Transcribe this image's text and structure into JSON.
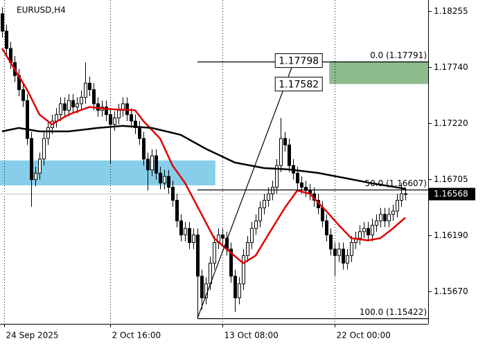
{
  "chart_data": {
    "type": "candlestick",
    "title": "EURUSD,H4",
    "ylim": [
      1.1537,
      1.18357
    ],
    "yticks": [
      1.18255,
      {
        "value": 1.1774,
        "label": "1.17740"
      },
      {
        "value": 1.1722,
        "label": "1.17220"
      },
      1.16705,
      {
        "value": 1.1619,
        "label": "1.16190"
      },
      {
        "value": 1.1567,
        "label": "1.15670"
      }
    ],
    "xlim": [
      -0.5,
      102.5
    ],
    "xticks": [
      {
        "value": 0.5,
        "label": "24 Sep 2025"
      },
      {
        "value": 26,
        "label": "2 Oct 16:00"
      },
      {
        "value": 53,
        "label": "13 Oct 08:00"
      },
      {
        "value": 80,
        "label": "22 Oct 00:00"
      }
    ],
    "grid": true,
    "bull_color": "#ffffff",
    "bear_color": "#000000",
    "candles": [
      [
        1.1823,
        1.1829,
        1.1801,
        1.1807
      ],
      [
        1.1807,
        1.1813,
        1.1785,
        1.1791
      ],
      [
        1.1791,
        1.1797,
        1.1772,
        1.1778
      ],
      [
        1.1778,
        1.1784,
        1.176,
        1.1766
      ],
      [
        1.1766,
        1.1772,
        1.1747,
        1.1753
      ],
      [
        1.1753,
        1.1759,
        1.1737,
        1.1743
      ],
      [
        1.1743,
        1.1749,
        1.1702,
        1.1708
      ],
      [
        1.1708,
        1.1714,
        1.1645,
        1.167
      ],
      [
        1.167,
        1.1682,
        1.1664,
        1.1676
      ],
      [
        1.1676,
        1.1695,
        1.167,
        1.1689
      ],
      [
        1.1689,
        1.1714,
        1.1683,
        1.1708
      ],
      [
        1.1708,
        1.1724,
        1.1702,
        1.1718
      ],
      [
        1.1718,
        1.173,
        1.1712,
        1.1724
      ],
      [
        1.1724,
        1.1736,
        1.1718,
        1.173
      ],
      [
        1.173,
        1.1746,
        1.1724,
        1.174
      ],
      [
        1.174,
        1.1746,
        1.1728,
        1.1734
      ],
      [
        1.1734,
        1.1749,
        1.1728,
        1.1743
      ],
      [
        1.1743,
        1.1749,
        1.1731,
        1.1737
      ],
      [
        1.1737,
        1.1746,
        1.1731,
        1.174
      ],
      [
        1.174,
        1.1752,
        1.1734,
        1.1746
      ],
      [
        1.1746,
        1.1778,
        1.174,
        1.1759
      ],
      [
        1.1759,
        1.1765,
        1.1747,
        1.1753
      ],
      [
        1.1753,
        1.1759,
        1.1734,
        1.174
      ],
      [
        1.174,
        1.1746,
        1.1728,
        1.1734
      ],
      [
        1.1734,
        1.1743,
        1.1728,
        1.1737
      ],
      [
        1.1737,
        1.1743,
        1.1724,
        1.173
      ],
      [
        1.173,
        1.1736,
        1.1685,
        1.1721
      ],
      [
        1.1721,
        1.1733,
        1.1715,
        1.1727
      ],
      [
        1.1727,
        1.174,
        1.1721,
        1.1734
      ],
      [
        1.1734,
        1.1746,
        1.1728,
        1.174
      ],
      [
        1.174,
        1.1746,
        1.1724,
        1.173
      ],
      [
        1.173,
        1.1736,
        1.1718,
        1.1724
      ],
      [
        1.1724,
        1.173,
        1.1712,
        1.1718
      ],
      [
        1.1718,
        1.1724,
        1.1702,
        1.1708
      ],
      [
        1.1708,
        1.1714,
        1.1683,
        1.1689
      ],
      [
        1.1689,
        1.1695,
        1.166,
        1.1679
      ],
      [
        1.1679,
        1.1698,
        1.1673,
        1.1692
      ],
      [
        1.1692,
        1.1698,
        1.167,
        1.1676
      ],
      [
        1.1676,
        1.1682,
        1.1661,
        1.1667
      ],
      [
        1.1667,
        1.1679,
        1.1661,
        1.1673
      ],
      [
        1.1673,
        1.1679,
        1.1657,
        1.1663
      ],
      [
        1.1663,
        1.1669,
        1.1645,
        1.1651
      ],
      [
        1.1651,
        1.1657,
        1.1626,
        1.1632
      ],
      [
        1.1632,
        1.1638,
        1.1613,
        1.1619
      ],
      [
        1.1619,
        1.1631,
        1.1613,
        1.1625
      ],
      [
        1.1625,
        1.1631,
        1.1606,
        1.1612
      ],
      [
        1.1612,
        1.1625,
        1.1606,
        1.1619
      ],
      [
        1.1619,
        1.1625,
        1.15422,
        1.1581
      ],
      [
        1.1581,
        1.1587,
        1.155,
        1.1561
      ],
      [
        1.1561,
        1.158,
        1.1555,
        1.1574
      ],
      [
        1.1574,
        1.1599,
        1.1568,
        1.1593
      ],
      [
        1.1593,
        1.1618,
        1.1587,
        1.1612
      ],
      [
        1.1612,
        1.1625,
        1.1606,
        1.1619
      ],
      [
        1.1619,
        1.1625,
        1.161,
        1.1616
      ],
      [
        1.1616,
        1.1622,
        1.16,
        1.1606
      ],
      [
        1.1606,
        1.1612,
        1.1575,
        1.1581
      ],
      [
        1.1581,
        1.1587,
        1.1548,
        1.1561
      ],
      [
        1.1561,
        1.158,
        1.1555,
        1.1574
      ],
      [
        1.1574,
        1.1606,
        1.1568,
        1.16
      ],
      [
        1.16,
        1.1618,
        1.1594,
        1.1612
      ],
      [
        1.1612,
        1.1631,
        1.1606,
        1.1625
      ],
      [
        1.1625,
        1.1638,
        1.1619,
        1.1632
      ],
      [
        1.1632,
        1.165,
        1.1626,
        1.1644
      ],
      [
        1.1644,
        1.1657,
        1.1638,
        1.1651
      ],
      [
        1.1651,
        1.1663,
        1.1645,
        1.1657
      ],
      [
        1.1657,
        1.1669,
        1.1651,
        1.1663
      ],
      [
        1.1663,
        1.1689,
        1.1657,
        1.1683
      ],
      [
        1.1683,
        1.1727,
        1.1677,
        1.1708
      ],
      [
        1.1708,
        1.1714,
        1.1696,
        1.1702
      ],
      [
        1.1702,
        1.1708,
        1.1677,
        1.1683
      ],
      [
        1.1683,
        1.1689,
        1.167,
        1.1676
      ],
      [
        1.1676,
        1.1682,
        1.1661,
        1.1667
      ],
      [
        1.1667,
        1.1673,
        1.1657,
        1.1663
      ],
      [
        1.1663,
        1.1669,
        1.1654,
        1.166
      ],
      [
        1.166,
        1.1666,
        1.1651,
        1.1657
      ],
      [
        1.1657,
        1.1663,
        1.1645,
        1.1651
      ],
      [
        1.1651,
        1.1657,
        1.1638,
        1.1644
      ],
      [
        1.1644,
        1.165,
        1.1626,
        1.1632
      ],
      [
        1.1632,
        1.1638,
        1.1613,
        1.1619
      ],
      [
        1.1619,
        1.1625,
        1.16,
        1.1606
      ],
      [
        1.1606,
        1.1612,
        1.1581,
        1.16
      ],
      [
        1.16,
        1.1612,
        1.1594,
        1.1606
      ],
      [
        1.1606,
        1.1612,
        1.1587,
        1.1593
      ],
      [
        1.1593,
        1.1606,
        1.1587,
        1.16
      ],
      [
        1.16,
        1.1618,
        1.1594,
        1.1612
      ],
      [
        1.1612,
        1.1622,
        1.1606,
        1.1616
      ],
      [
        1.1616,
        1.1628,
        1.161,
        1.1622
      ],
      [
        1.1622,
        1.1631,
        1.1616,
        1.1625
      ],
      [
        1.1625,
        1.1631,
        1.1613,
        1.1619
      ],
      [
        1.1619,
        1.1634,
        1.1613,
        1.1628
      ],
      [
        1.1628,
        1.1638,
        1.1622,
        1.1632
      ],
      [
        1.1632,
        1.1644,
        1.1626,
        1.1638
      ],
      [
        1.1638,
        1.1644,
        1.1626,
        1.1632
      ],
      [
        1.1632,
        1.1644,
        1.1626,
        1.1638
      ],
      [
        1.1638,
        1.1647,
        1.1632,
        1.1641
      ],
      [
        1.1641,
        1.1657,
        1.1635,
        1.1651
      ],
      [
        1.1651,
        1.1667,
        1.1645,
        1.1657
      ],
      [
        1.1657,
        1.1663,
        1.1651,
        1.16568
      ]
    ],
    "series": [
      {
        "color": "#e00000",
        "x": [
          0,
          3,
          6,
          9,
          12,
          16,
          21,
          26,
          32,
          34,
          38,
          41,
          44,
          48,
          51,
          54,
          58,
          61,
          64,
          68,
          71,
          74,
          78,
          81,
          84,
          88,
          91,
          94,
          97
        ],
        "values": [
          1.1791,
          1.1772,
          1.1753,
          1.173,
          1.1721,
          1.173,
          1.1737,
          1.1735,
          1.1734,
          1.1724,
          1.1708,
          1.1683,
          1.1667,
          1.1638,
          1.1616,
          1.1606,
          1.1593,
          1.16,
          1.1619,
          1.1644,
          1.166,
          1.1657,
          1.1641,
          1.1628,
          1.1616,
          1.1614,
          1.1616,
          1.1625,
          1.1635
        ]
      },
      {
        "color": "#000000",
        "x": [
          0,
          4,
          9,
          16,
          23,
          29,
          36,
          43,
          49,
          56,
          63,
          69,
          76,
          83,
          89,
          96,
          97
        ],
        "values": [
          1.17145,
          1.17177,
          1.17145,
          1.17145,
          1.17177,
          1.17196,
          1.17177,
          1.17113,
          1.16985,
          1.16858,
          1.16807,
          1.16794,
          1.16762,
          1.16711,
          1.16666,
          1.16622,
          1.16615
        ]
      }
    ],
    "zones": [
      {
        "xlim": [
          -0.5,
          51.3
        ],
        "ylim": [
          1.16647,
          1.16877
        ],
        "color": "#87ceeb"
      },
      {
        "xlim": [
          78.7,
          102.5
        ],
        "ylim": [
          1.17582,
          1.17791
        ],
        "color": "#8fbc8f"
      }
    ],
    "fibonacci": {
      "x": [
        47,
        102.5
      ],
      "levels": [
        {
          "value": 1.17791,
          "label": "0.0 (1.17791)"
        },
        {
          "value": 1.16607,
          "label": "50.0 (1.16607)"
        },
        {
          "value": 1.15422,
          "label": "100.0 (1.15422)"
        }
      ]
    },
    "trendline": {
      "x": [
        47,
        70.3
      ],
      "values": [
        1.15422,
        1.17798
      ]
    },
    "price_labels": [
      {
        "x": 65.7,
        "value": 1.17798
      },
      {
        "x": 65.7,
        "value": 1.17582
      }
    ],
    "current_price": 1.16568
  }
}
